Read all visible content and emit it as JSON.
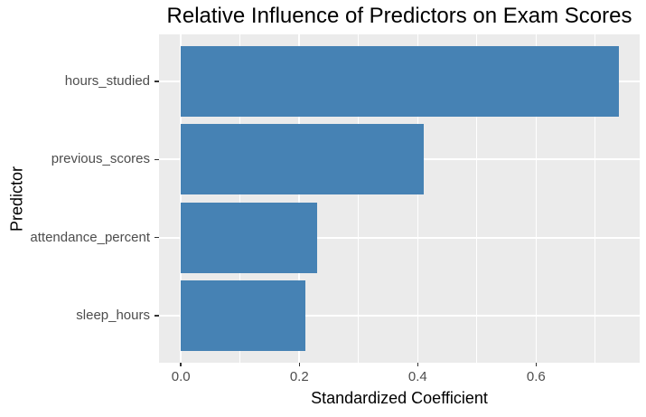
{
  "chart_data": {
    "type": "bar",
    "orientation": "horizontal",
    "title": "Relative Influence of Predictors on Exam Scores",
    "xlabel": "Standardized Coefficient",
    "ylabel": "Predictor",
    "categories": [
      "hours_studied",
      "previous_scores",
      "attendance_percent",
      "sleep_hours"
    ],
    "values": [
      0.74,
      0.41,
      0.23,
      0.21
    ],
    "x_ticks": [
      0.0,
      0.2,
      0.4,
      0.6
    ],
    "x_tick_labels": [
      "0.0",
      "0.2",
      "0.4",
      "0.6"
    ],
    "x_minor_ticks": [
      0.1,
      0.3,
      0.5,
      0.7
    ],
    "xlim": [
      -0.037,
      0.775
    ],
    "legend": "none",
    "grid": "on",
    "colors": {
      "bar_fill": "#4682B4",
      "panel_background": "#EBEBEB",
      "gridline": "#FFFFFF",
      "tick_label": "#4D4D4D",
      "axis_title": "#000000",
      "tick_mark": "#333333",
      "figure_background": "#FFFFFF"
    }
  }
}
